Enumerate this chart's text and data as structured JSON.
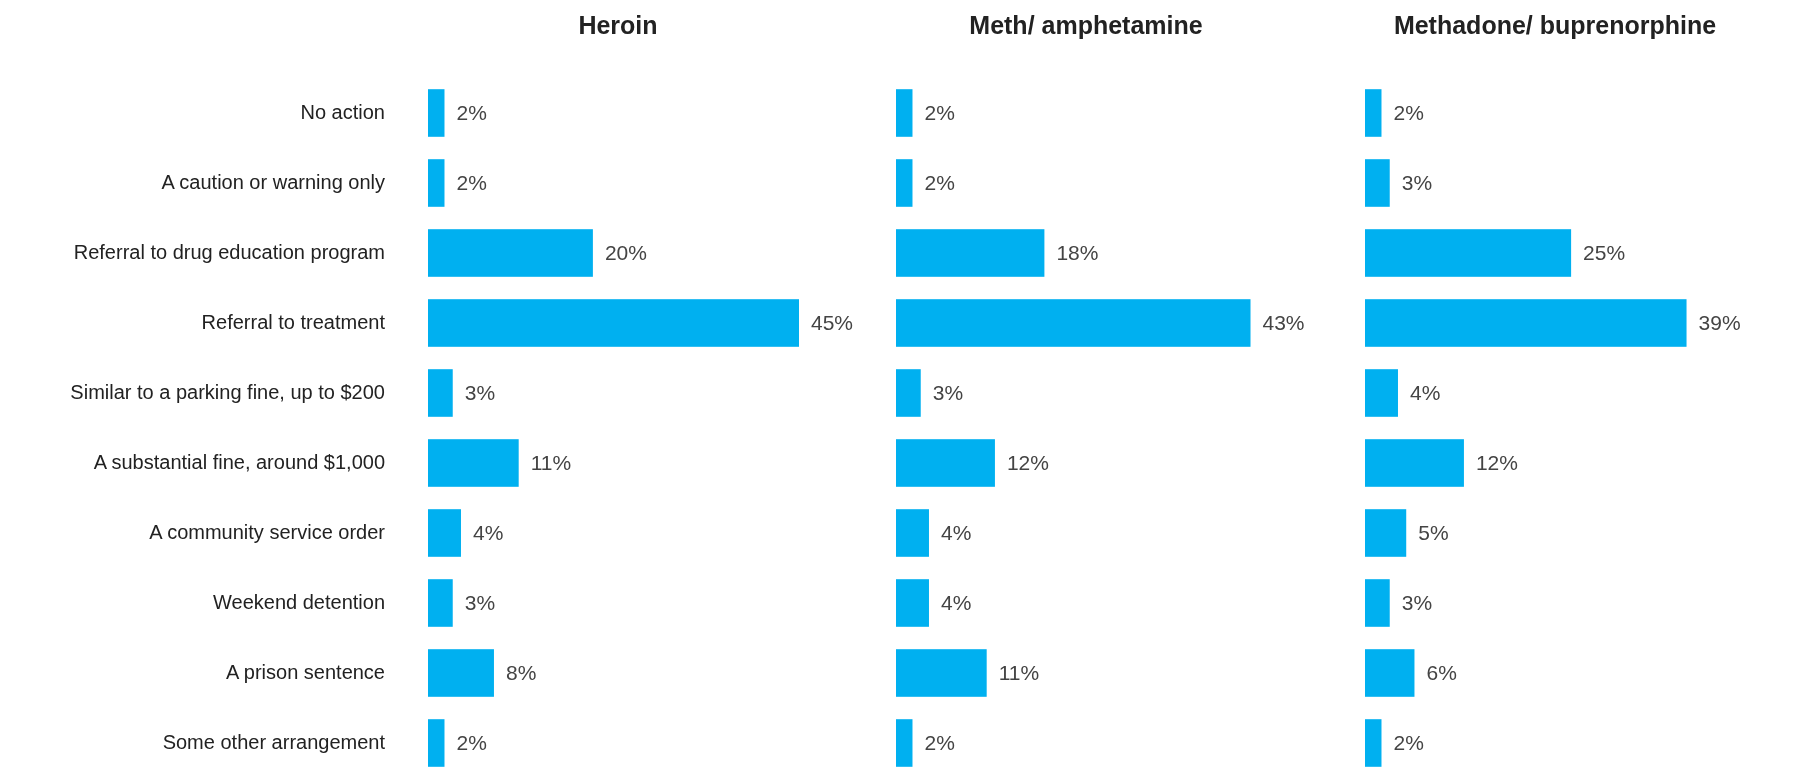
{
  "chart_data": [
    {
      "type": "bar",
      "orientation": "horizontal",
      "title": "Heroin",
      "tick_labels": "y",
      "categories": [
        "No action",
        "A caution or warning only",
        "Referral to drug education program",
        "Referral to treatment",
        "Similar to a parking fine, up to $200",
        "A substantial fine, around $1,000",
        "A community service order",
        "Weekend detention",
        "A prison sentence",
        "Some other arrangement"
      ],
      "values": [
        2,
        2,
        20,
        45,
        3,
        11,
        4,
        3,
        8,
        2
      ],
      "color": "#00b0f0",
      "value_labels": [
        "2%",
        "2%",
        "20%",
        "45%",
        "3%",
        "11%",
        "4%",
        "3%",
        "8%",
        "2%"
      ]
    },
    {
      "type": "bar",
      "orientation": "horizontal",
      "title": "Meth/ amphetamine",
      "tick_labels": false,
      "categories": [
        null,
        null,
        null,
        null,
        null,
        null,
        null,
        null,
        null,
        null
      ],
      "values": [
        2,
        2,
        18,
        43,
        3,
        12,
        4,
        4,
        11,
        2
      ],
      "color": "#00b0f0",
      "value_labels": [
        "2%",
        "2%",
        "18%",
        "43%",
        "3%",
        "12%",
        "4%",
        "4%",
        "11%",
        "2%"
      ]
    },
    {
      "type": "bar",
      "orientation": "horizontal",
      "title": "Methadone/ buprenorphine",
      "tick_labels": false,
      "categories": [
        null,
        null,
        null,
        null,
        null,
        null,
        null,
        null,
        null,
        null
      ],
      "values": [
        2,
        3,
        25,
        39,
        4,
        12,
        5,
        3,
        6,
        2
      ],
      "color": "#00b0f0",
      "value_labels": [
        "2%",
        "3%",
        "25%",
        "39%",
        "4%",
        "12%",
        "5%",
        "3%",
        "6%",
        "2%"
      ]
    }
  ]
}
